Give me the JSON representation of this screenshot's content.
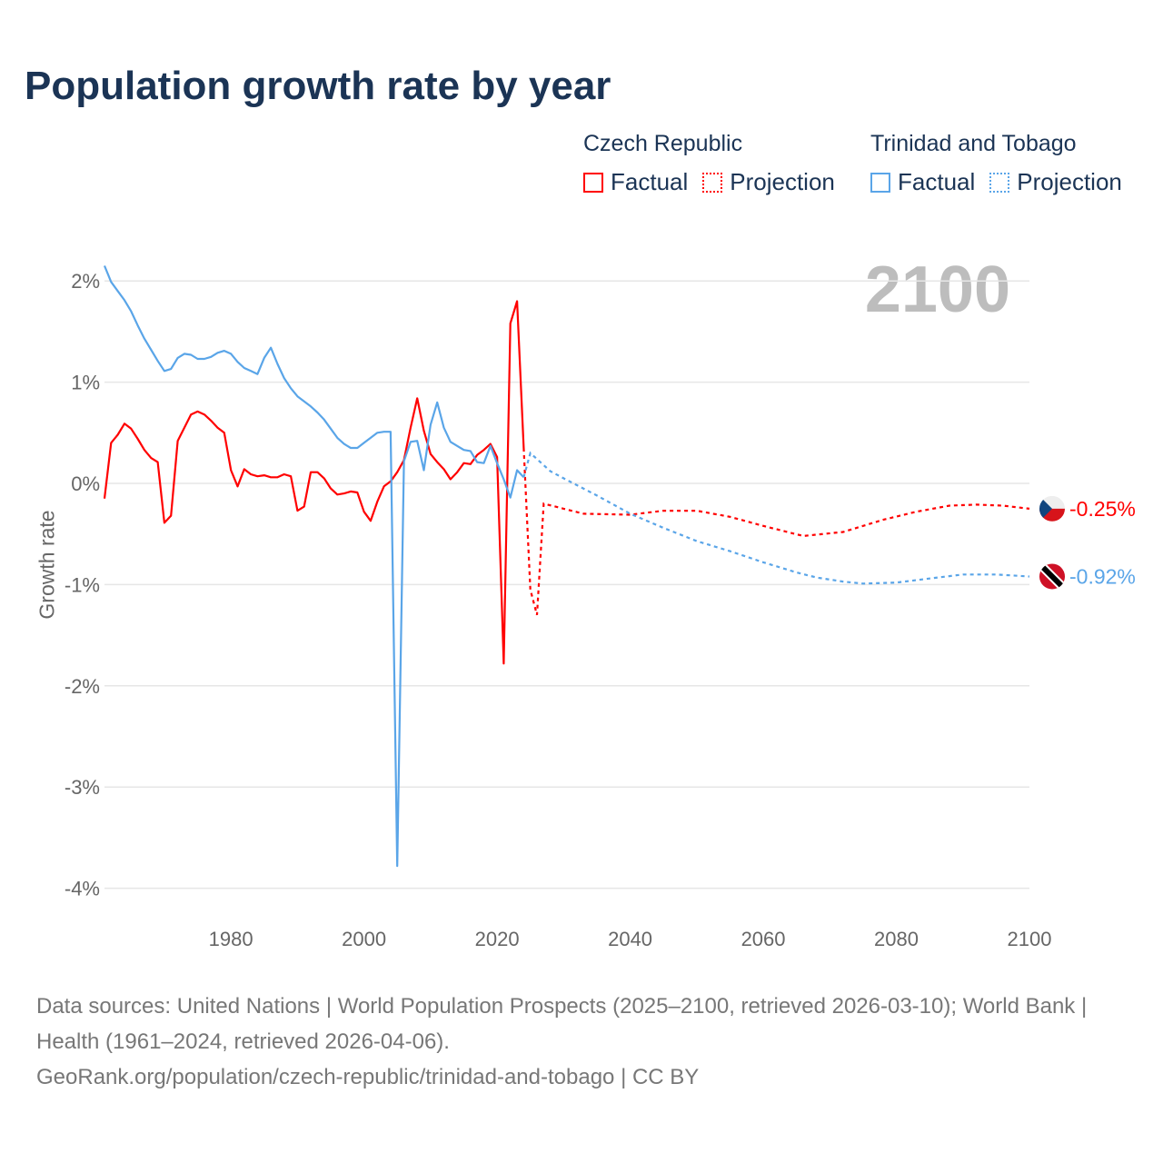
{
  "title": "Population growth rate by year",
  "current_year": "2100",
  "legend": {
    "groups": [
      {
        "name": "Czech Republic",
        "color": "#ff0000",
        "factual": "Factual",
        "projection": "Projection"
      },
      {
        "name": "Trinidad and Tobago",
        "color": "#5aa5e8",
        "factual": "Factual",
        "projection": "Projection"
      }
    ]
  },
  "footer": {
    "sources": "Data sources: United Nations | World Population Prospects (2025–2100, retrieved 2026-03-10); World Bank | Health (1961–2024, retrieved 2026-04-06).",
    "link": "GeoRank.org/population/czech-republic/trinidad-and-tobago | CC BY"
  },
  "chart_data": {
    "type": "line",
    "title": "Population growth rate by year",
    "xlabel": "",
    "ylabel": "Growth rate",
    "xlim": [
      1961,
      2100
    ],
    "ylim": [
      -4,
      2.2
    ],
    "x_ticks": [
      1980,
      2000,
      2020,
      2040,
      2060,
      2080,
      2100
    ],
    "y_ticks": [
      2,
      1,
      0,
      -1,
      -2,
      -3,
      -4
    ],
    "y_tick_labels": [
      "2%",
      "1%",
      "0%",
      "-1%",
      "-2%",
      "-3%",
      "-4%"
    ],
    "grid": true,
    "legend_position": "top-right",
    "series": [
      {
        "name": "Czech Republic",
        "color": "#ff0000",
        "end_label": "-0.25%",
        "factual": {
          "x": [
            1961,
            1962,
            1963,
            1964,
            1965,
            1966,
            1967,
            1968,
            1969,
            1970,
            1971,
            1972,
            1973,
            1974,
            1975,
            1976,
            1977,
            1978,
            1979,
            1980,
            1981,
            1982,
            1983,
            1984,
            1985,
            1986,
            1987,
            1988,
            1989,
            1990,
            1991,
            1992,
            1993,
            1994,
            1995,
            1996,
            1997,
            1998,
            1999,
            2000,
            2001,
            2002,
            2003,
            2004,
            2005,
            2006,
            2007,
            2008,
            2009,
            2010,
            2011,
            2012,
            2013,
            2014,
            2015,
            2016,
            2017,
            2018,
            2019,
            2020,
            2021,
            2022,
            2023,
            2024
          ],
          "y": [
            -0.15,
            0.4,
            0.48,
            0.59,
            0.54,
            0.44,
            0.33,
            0.25,
            0.21,
            -0.39,
            -0.32,
            0.42,
            0.55,
            0.68,
            0.71,
            0.68,
            0.62,
            0.55,
            0.5,
            0.13,
            -0.03,
            0.14,
            0.09,
            0.07,
            0.08,
            0.06,
            0.06,
            0.09,
            0.07,
            -0.27,
            -0.23,
            0.11,
            0.11,
            0.05,
            -0.05,
            -0.11,
            -0.1,
            -0.08,
            -0.09,
            -0.28,
            -0.37,
            -0.18,
            -0.03,
            0.02,
            0.11,
            0.23,
            0.55,
            0.84,
            0.52,
            0.29,
            0.21,
            0.14,
            0.04,
            0.11,
            0.2,
            0.19,
            0.28,
            0.33,
            0.39,
            0.26,
            -1.78,
            1.58,
            1.8,
            0.35
          ]
        },
        "projection": {
          "x": [
            2024,
            2025,
            2026,
            2027,
            2030,
            2033,
            2040,
            2045,
            2050,
            2055,
            2060,
            2066,
            2072,
            2078,
            2083,
            2088,
            2092,
            2096,
            2100
          ],
          "y": [
            0.35,
            -1.05,
            -1.3,
            -0.2,
            -0.25,
            -0.3,
            -0.31,
            -0.27,
            -0.27,
            -0.33,
            -0.42,
            -0.52,
            -0.48,
            -0.36,
            -0.28,
            -0.22,
            -0.21,
            -0.22,
            -0.25
          ]
        }
      },
      {
        "name": "Trinidad and Tobago",
        "color": "#5aa5e8",
        "end_label": "-0.92%",
        "factual": {
          "x": [
            1961,
            1962,
            1963,
            1964,
            1965,
            1966,
            1967,
            1968,
            1969,
            1970,
            1971,
            1972,
            1973,
            1974,
            1975,
            1976,
            1977,
            1978,
            1979,
            1980,
            1981,
            1982,
            1983,
            1984,
            1985,
            1986,
            1987,
            1988,
            1989,
            1990,
            1991,
            1992,
            1993,
            1994,
            1995,
            1996,
            1997,
            1998,
            1999,
            2000,
            2001,
            2002,
            2003,
            2004,
            2005,
            2006,
            2007,
            2008,
            2009,
            2010,
            2011,
            2012,
            2013,
            2014,
            2015,
            2016,
            2017,
            2018,
            2019,
            2020,
            2021,
            2022,
            2023,
            2024
          ],
          "y": [
            2.15,
            1.99,
            1.9,
            1.81,
            1.7,
            1.56,
            1.43,
            1.32,
            1.21,
            1.11,
            1.13,
            1.24,
            1.28,
            1.27,
            1.23,
            1.23,
            1.25,
            1.29,
            1.31,
            1.28,
            1.2,
            1.14,
            1.11,
            1.08,
            1.24,
            1.34,
            1.18,
            1.04,
            0.94,
            0.86,
            0.81,
            0.76,
            0.7,
            0.63,
            0.54,
            0.45,
            0.39,
            0.35,
            0.35,
            0.4,
            0.45,
            0.5,
            0.51,
            0.51,
            -3.78,
            0.22,
            0.41,
            0.42,
            0.13,
            0.58,
            0.8,
            0.55,
            0.41,
            0.37,
            0.33,
            0.32,
            0.21,
            0.2,
            0.37,
            0.2,
            0.04,
            -0.14,
            0.13,
            0.06
          ]
        },
        "projection": {
          "x": [
            2024,
            2025,
            2028,
            2030,
            2035,
            2040,
            2045,
            2050,
            2055,
            2060,
            2065,
            2068,
            2072,
            2075,
            2080,
            2085,
            2090,
            2095,
            2100
          ],
          "y": [
            0.06,
            0.3,
            0.12,
            0.05,
            -0.12,
            -0.3,
            -0.44,
            -0.57,
            -0.67,
            -0.78,
            -0.88,
            -0.93,
            -0.97,
            -0.99,
            -0.98,
            -0.94,
            -0.9,
            -0.9,
            -0.92
          ]
        }
      }
    ]
  }
}
